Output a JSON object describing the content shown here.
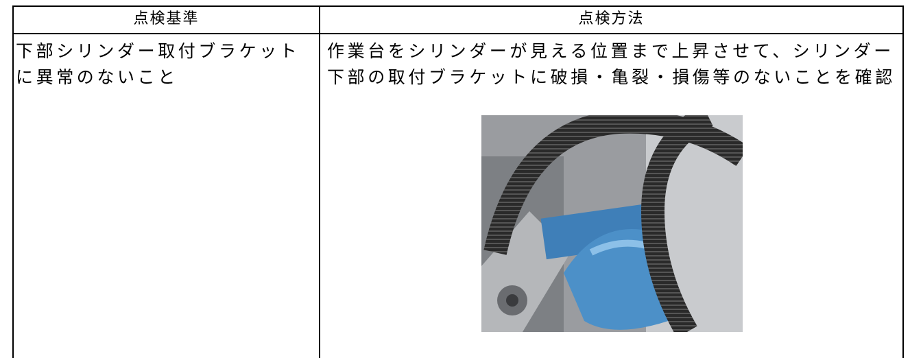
{
  "table": {
    "headers": [
      "点検基準",
      "点検方法"
    ],
    "rows": [
      [
        [
          "下部シリンダー取付ブラケット",
          "に異常のないこと"
        ],
        [
          "作業台をシリンダーが見える位置まで上昇させて、シリンダー",
          "下部の取付ブラケットに破損・亀裂・損傷等のないことを確認"
        ]
      ]
    ]
  }
}
